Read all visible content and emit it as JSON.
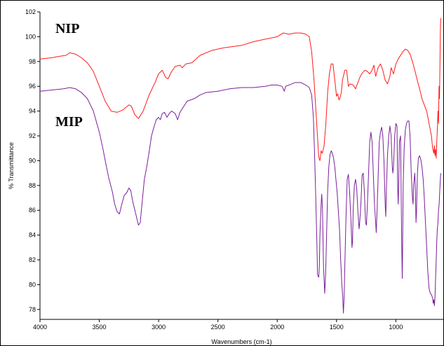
{
  "chart_data": {
    "type": "line",
    "xlabel": "Wavenumbers (cm-1)",
    "ylabel": "% Transmittance",
    "xlim": [
      4000,
      600
    ],
    "x_reversed": true,
    "ylim": [
      77.2,
      102
    ],
    "x_ticks": [
      4000,
      3500,
      3000,
      2500,
      2000,
      1500,
      1000
    ],
    "y_ticks": [
      78,
      80,
      82,
      84,
      86,
      88,
      90,
      92,
      94,
      96,
      98,
      100,
      102
    ],
    "grid": false,
    "legend": "none",
    "series": [
      {
        "name": "NIP",
        "color": "#ff1a1a",
        "points": [
          [
            4000,
            98.2
          ],
          [
            3900,
            98.3
          ],
          [
            3850,
            98.4
          ],
          [
            3780,
            98.5
          ],
          [
            3750,
            98.7
          ],
          [
            3700,
            98.6
          ],
          [
            3650,
            98.3
          ],
          [
            3600,
            97.9
          ],
          [
            3550,
            97.2
          ],
          [
            3500,
            96.0
          ],
          [
            3450,
            94.8
          ],
          [
            3400,
            94.0
          ],
          [
            3350,
            93.9
          ],
          [
            3300,
            94.1
          ],
          [
            3250,
            94.5
          ],
          [
            3230,
            94.4
          ],
          [
            3200,
            93.7
          ],
          [
            3170,
            93.4
          ],
          [
            3130,
            94.0
          ],
          [
            3080,
            95.3
          ],
          [
            3030,
            96.3
          ],
          [
            3000,
            97.0
          ],
          [
            2970,
            97.3
          ],
          [
            2940,
            96.7
          ],
          [
            2920,
            96.6
          ],
          [
            2890,
            97.2
          ],
          [
            2860,
            97.6
          ],
          [
            2820,
            97.7
          ],
          [
            2800,
            97.5
          ],
          [
            2770,
            97.8
          ],
          [
            2720,
            97.9
          ],
          [
            2650,
            98.5
          ],
          [
            2550,
            98.9
          ],
          [
            2450,
            99.1
          ],
          [
            2300,
            99.3
          ],
          [
            2200,
            99.6
          ],
          [
            2100,
            99.8
          ],
          [
            2000,
            100.0
          ],
          [
            1950,
            100.3
          ],
          [
            1900,
            100.2
          ],
          [
            1850,
            100.3
          ],
          [
            1800,
            100.3
          ],
          [
            1760,
            100.2
          ],
          [
            1730,
            100.0
          ],
          [
            1710,
            98.8
          ],
          [
            1690,
            96.5
          ],
          [
            1670,
            93.5
          ],
          [
            1650,
            90.3
          ],
          [
            1640,
            90.0
          ],
          [
            1630,
            90.8
          ],
          [
            1620,
            90.6
          ],
          [
            1605,
            91.2
          ],
          [
            1590,
            93.0
          ],
          [
            1575,
            95.5
          ],
          [
            1560,
            97.0
          ],
          [
            1545,
            97.8
          ],
          [
            1530,
            97.8
          ],
          [
            1515,
            96.5
          ],
          [
            1500,
            95.2
          ],
          [
            1490,
            95.4
          ],
          [
            1480,
            94.9
          ],
          [
            1470,
            95.1
          ],
          [
            1460,
            95.5
          ],
          [
            1450,
            96.5
          ],
          [
            1430,
            97.3
          ],
          [
            1415,
            97.3
          ],
          [
            1400,
            96.0
          ],
          [
            1385,
            96.2
          ],
          [
            1360,
            96.1
          ],
          [
            1340,
            95.8
          ],
          [
            1320,
            96.3
          ],
          [
            1300,
            96.8
          ],
          [
            1280,
            97.1
          ],
          [
            1260,
            97.3
          ],
          [
            1240,
            97.2
          ],
          [
            1220,
            97.0
          ],
          [
            1200,
            97.3
          ],
          [
            1185,
            97.7
          ],
          [
            1170,
            96.8
          ],
          [
            1150,
            97.5
          ],
          [
            1130,
            97.8
          ],
          [
            1110,
            97.3
          ],
          [
            1090,
            96.5
          ],
          [
            1070,
            96.2
          ],
          [
            1050,
            96.8
          ],
          [
            1040,
            97.5
          ],
          [
            1020,
            97.0
          ],
          [
            1000,
            97.8
          ],
          [
            980,
            98.2
          ],
          [
            960,
            98.5
          ],
          [
            940,
            98.8
          ],
          [
            920,
            99.0
          ],
          [
            900,
            98.9
          ],
          [
            880,
            98.6
          ],
          [
            860,
            98.0
          ],
          [
            840,
            97.3
          ],
          [
            820,
            96.5
          ],
          [
            800,
            95.8
          ],
          [
            780,
            95.0
          ],
          [
            760,
            94.5
          ],
          [
            740,
            94.0
          ],
          [
            720,
            93.0
          ],
          [
            700,
            92.0
          ],
          [
            690,
            91.0
          ],
          [
            680,
            90.6
          ],
          [
            675,
            91.2
          ],
          [
            670,
            90.4
          ],
          [
            665,
            90.9
          ],
          [
            660,
            90.2
          ],
          [
            655,
            91.5
          ],
          [
            650,
            92.5
          ],
          [
            645,
            94.0
          ],
          [
            640,
            93.0
          ],
          [
            636,
            96.0
          ],
          [
            632,
            95.0
          ],
          [
            628,
            98.0
          ],
          [
            625,
            100.5
          ],
          [
            622,
            101.5
          ]
        ]
      },
      {
        "name": "MIP",
        "color": "#7a1f9a",
        "points": [
          [
            4000,
            95.6
          ],
          [
            3900,
            95.7
          ],
          [
            3800,
            95.8
          ],
          [
            3750,
            95.9
          ],
          [
            3700,
            95.8
          ],
          [
            3650,
            95.5
          ],
          [
            3600,
            95.0
          ],
          [
            3550,
            94.0
          ],
          [
            3500,
            92.3
          ],
          [
            3470,
            91.0
          ],
          [
            3450,
            90.0
          ],
          [
            3420,
            88.6
          ],
          [
            3390,
            87.5
          ],
          [
            3370,
            86.5
          ],
          [
            3350,
            85.9
          ],
          [
            3330,
            85.7
          ],
          [
            3310,
            86.5
          ],
          [
            3290,
            87.2
          ],
          [
            3270,
            87.4
          ],
          [
            3250,
            87.8
          ],
          [
            3235,
            87.6
          ],
          [
            3220,
            86.8
          ],
          [
            3200,
            86.0
          ],
          [
            3180,
            85.2
          ],
          [
            3170,
            84.8
          ],
          [
            3155,
            85.0
          ],
          [
            3140,
            86.5
          ],
          [
            3120,
            88.5
          ],
          [
            3100,
            89.5
          ],
          [
            3080,
            90.7
          ],
          [
            3060,
            92.0
          ],
          [
            3040,
            92.7
          ],
          [
            3020,
            93.3
          ],
          [
            3000,
            93.5
          ],
          [
            2985,
            93.3
          ],
          [
            2970,
            93.8
          ],
          [
            2950,
            93.9
          ],
          [
            2930,
            93.5
          ],
          [
            2910,
            93.8
          ],
          [
            2890,
            94.0
          ],
          [
            2860,
            93.8
          ],
          [
            2840,
            93.3
          ],
          [
            2820,
            93.9
          ],
          [
            2800,
            94.2
          ],
          [
            2760,
            94.8
          ],
          [
            2700,
            95.0
          ],
          [
            2650,
            95.3
          ],
          [
            2600,
            95.5
          ],
          [
            2500,
            95.6
          ],
          [
            2400,
            95.8
          ],
          [
            2300,
            95.9
          ],
          [
            2200,
            95.9
          ],
          [
            2100,
            96.0
          ],
          [
            2050,
            96.1
          ],
          [
            2000,
            96.1
          ],
          [
            1960,
            96.0
          ],
          [
            1940,
            95.6
          ],
          [
            1930,
            96.0
          ],
          [
            1900,
            96.1
          ],
          [
            1850,
            96.3
          ],
          [
            1800,
            96.3
          ],
          [
            1760,
            96.1
          ],
          [
            1730,
            95.9
          ],
          [
            1710,
            95.3
          ],
          [
            1695,
            93.5
          ],
          [
            1685,
            90.5
          ],
          [
            1675,
            87.0
          ],
          [
            1665,
            83.0
          ],
          [
            1660,
            80.8
          ],
          [
            1650,
            80.6
          ],
          [
            1645,
            81.5
          ],
          [
            1640,
            84.0
          ],
          [
            1630,
            86.5
          ],
          [
            1625,
            87.3
          ],
          [
            1618,
            86.0
          ],
          [
            1610,
            81.5
          ],
          [
            1600,
            79.3
          ],
          [
            1592,
            80.8
          ],
          [
            1585,
            83.5
          ],
          [
            1575,
            87.5
          ],
          [
            1565,
            89.5
          ],
          [
            1555,
            90.5
          ],
          [
            1545,
            90.8
          ],
          [
            1535,
            90.6
          ],
          [
            1525,
            90.2
          ],
          [
            1515,
            89.5
          ],
          [
            1505,
            88.5
          ],
          [
            1495,
            87.5
          ],
          [
            1485,
            86.0
          ],
          [
            1475,
            84.5
          ],
          [
            1465,
            82.0
          ],
          [
            1455,
            80.0
          ],
          [
            1448,
            79.0
          ],
          [
            1442,
            77.7
          ],
          [
            1436,
            79.0
          ],
          [
            1430,
            81.5
          ],
          [
            1420,
            85.5
          ],
          [
            1410,
            88.5
          ],
          [
            1400,
            88.9
          ],
          [
            1390,
            87.5
          ],
          [
            1380,
            85.5
          ],
          [
            1370,
            83.0
          ],
          [
            1365,
            83.5
          ],
          [
            1360,
            86.0
          ],
          [
            1350,
            88.0
          ],
          [
            1340,
            88.5
          ],
          [
            1330,
            87.8
          ],
          [
            1320,
            86.0
          ],
          [
            1310,
            84.5
          ],
          [
            1305,
            85.0
          ],
          [
            1295,
            86.5
          ],
          [
            1285,
            88.8
          ],
          [
            1275,
            89.0
          ],
          [
            1265,
            87.5
          ],
          [
            1255,
            85.0
          ],
          [
            1248,
            84.8
          ],
          [
            1240,
            86.5
          ],
          [
            1230,
            89.0
          ],
          [
            1220,
            91.5
          ],
          [
            1210,
            92.3
          ],
          [
            1200,
            91.5
          ],
          [
            1190,
            89.0
          ],
          [
            1180,
            86.5
          ],
          [
            1170,
            85.0
          ],
          [
            1165,
            84.2
          ],
          [
            1160,
            85.5
          ],
          [
            1150,
            88.5
          ],
          [
            1140,
            91.5
          ],
          [
            1130,
            92.3
          ],
          [
            1120,
            92.7
          ],
          [
            1110,
            92.0
          ],
          [
            1100,
            90.0
          ],
          [
            1090,
            86.5
          ],
          [
            1085,
            85.5
          ],
          [
            1080,
            87.5
          ],
          [
            1070,
            90.5
          ],
          [
            1060,
            92.0
          ],
          [
            1050,
            92.8
          ],
          [
            1040,
            92.0
          ],
          [
            1030,
            89.5
          ],
          [
            1025,
            89.0
          ],
          [
            1020,
            89.5
          ],
          [
            1010,
            92.0
          ],
          [
            1000,
            93.0
          ],
          [
            990,
            92.8
          ],
          [
            985,
            88.0
          ],
          [
            980,
            86.5
          ],
          [
            975,
            88.5
          ],
          [
            970,
            91.5
          ],
          [
            960,
            92.0
          ],
          [
            955,
            87.0
          ],
          [
            950,
            83.0
          ],
          [
            946,
            80.5
          ],
          [
            943,
            83.0
          ],
          [
            938,
            88.0
          ],
          [
            930,
            91.0
          ],
          [
            920,
            92.5
          ],
          [
            910,
            93.0
          ],
          [
            900,
            93.2
          ],
          [
            890,
            93.2
          ],
          [
            880,
            92.0
          ],
          [
            870,
            89.0
          ],
          [
            860,
            87.0
          ],
          [
            855,
            86.5
          ],
          [
            850,
            88.0
          ],
          [
            840,
            89.0
          ],
          [
            835,
            87.5
          ],
          [
            830,
            85.0
          ],
          [
            825,
            86.0
          ],
          [
            818,
            89.0
          ],
          [
            810,
            90.2
          ],
          [
            800,
            90.4
          ],
          [
            790,
            90.1
          ],
          [
            780,
            89.5
          ],
          [
            770,
            88.5
          ],
          [
            760,
            87.0
          ],
          [
            750,
            85.0
          ],
          [
            740,
            83.0
          ],
          [
            730,
            81.0
          ],
          [
            720,
            79.7
          ],
          [
            710,
            79.3
          ],
          [
            700,
            79.2
          ],
          [
            690,
            78.9
          ],
          [
            685,
            78.5
          ],
          [
            680,
            78.8
          ],
          [
            675,
            78.3
          ],
          [
            670,
            79.0
          ],
          [
            665,
            80.5
          ],
          [
            660,
            82.0
          ],
          [
            655,
            83.5
          ],
          [
            650,
            84.5
          ],
          [
            645,
            85.0
          ],
          [
            640,
            86.0
          ],
          [
            635,
            86.5
          ],
          [
            630,
            87.5
          ],
          [
            625,
            88.5
          ],
          [
            622,
            89.0
          ]
        ]
      }
    ],
    "annotations": [
      {
        "text": "NIP",
        "x": 3870,
        "y": 100.3
      },
      {
        "text": "MIP",
        "x": 3870,
        "y": 92.8
      }
    ]
  }
}
